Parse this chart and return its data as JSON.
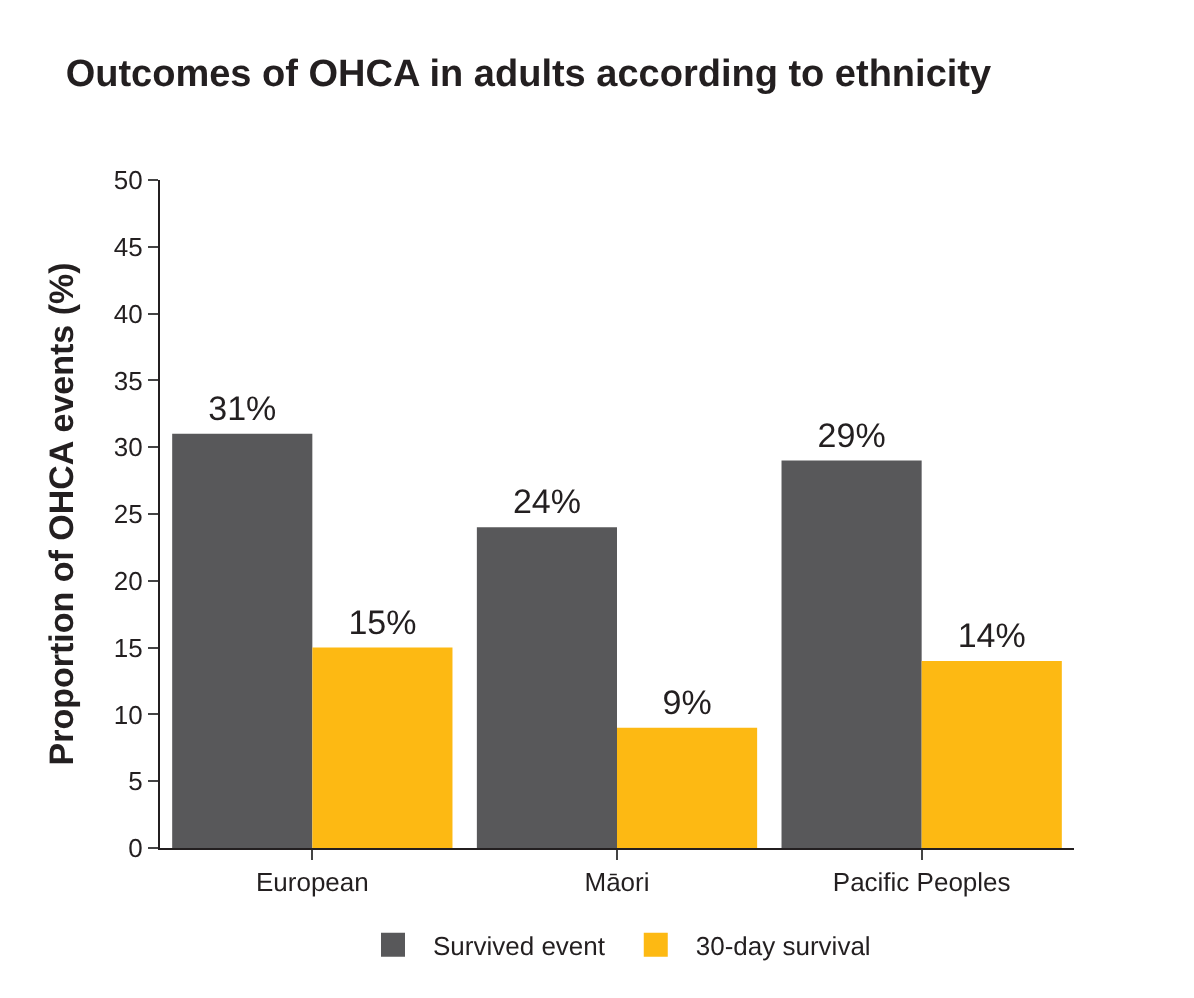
{
  "chart_data": {
    "type": "bar",
    "title": "Outcomes of OHCA in adults according to ethnicity",
    "ylabel": "Proportion of OHCA events (%)",
    "categories": [
      "European",
      "Māori",
      "Pacific Peoples"
    ],
    "series": [
      {
        "name": "Survived event",
        "color": "#58585a",
        "values": [
          31,
          24,
          29
        ],
        "value_labels": [
          "31%",
          "24%",
          "29%"
        ]
      },
      {
        "name": "30-day survival",
        "color": "#fdb913",
        "values": [
          15,
          9,
          14
        ],
        "value_labels": [
          "15%",
          "9%",
          "14%"
        ]
      }
    ],
    "ylim": [
      0,
      50
    ],
    "yticks": [
      0,
      5,
      10,
      15,
      20,
      25,
      30,
      35,
      40,
      45,
      50
    ],
    "legend": "bottom"
  }
}
